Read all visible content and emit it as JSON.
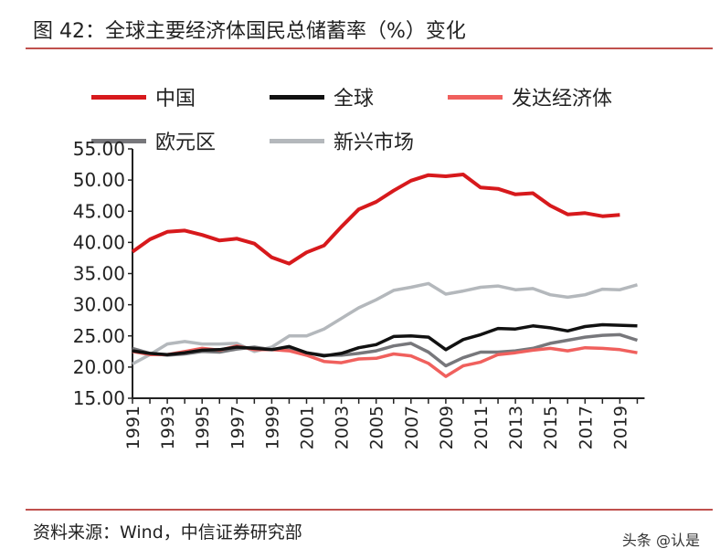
{
  "title": "图 42：全球主要经济体国民总储蓄率（%）变化",
  "source": "资料来源：Wind，中信证券研究部",
  "watermark": "头条 @认是",
  "chart_data": {
    "type": "line",
    "title": "",
    "xlabel": "",
    "ylabel": "",
    "ylim": [
      15,
      55
    ],
    "yticks": [
      "55.00",
      "50.00",
      "45.00",
      "40.00",
      "35.00",
      "30.00",
      "25.00",
      "20.00",
      "15.00"
    ],
    "xticks": [
      "1991",
      "1993",
      "1995",
      "1997",
      "1999",
      "2001",
      "2003",
      "2005",
      "2007",
      "2009",
      "2011",
      "2013",
      "2015",
      "2017",
      "2019"
    ],
    "x": [
      1991,
      1992,
      1993,
      1994,
      1995,
      1996,
      1997,
      1998,
      1999,
      2000,
      2001,
      2002,
      2003,
      2004,
      2005,
      2006,
      2007,
      2008,
      2009,
      2010,
      2011,
      2012,
      2013,
      2014,
      2015,
      2016,
      2017,
      2018,
      2019,
      2020
    ],
    "legend_position": "top",
    "grid": false,
    "series": [
      {
        "name": "中国",
        "color": "#d7191c",
        "values": [
          38.5,
          40.5,
          41.7,
          41.9,
          41.2,
          40.3,
          40.6,
          39.8,
          37.6,
          36.6,
          38.4,
          39.5,
          42.5,
          45.3,
          46.5,
          48.3,
          49.9,
          50.8,
          50.6,
          50.9,
          48.8,
          48.6,
          47.7,
          47.9,
          45.9,
          44.5,
          44.7,
          44.2,
          44.4,
          null
        ]
      },
      {
        "name": "全球",
        "color": "#111111",
        "values": [
          22.6,
          22.2,
          22.0,
          22.3,
          22.7,
          22.8,
          23.2,
          23.0,
          22.8,
          23.3,
          22.3,
          21.8,
          22.2,
          23.1,
          23.6,
          24.9,
          25.0,
          24.8,
          22.8,
          24.4,
          25.2,
          26.2,
          26.1,
          26.6,
          26.3,
          25.8,
          26.5,
          26.8,
          26.7,
          26.6
        ]
      },
      {
        "name": "发达经济体",
        "color": "#f0605d",
        "values": [
          22.5,
          22.0,
          22.0,
          22.5,
          23.0,
          22.7,
          23.4,
          22.8,
          22.8,
          22.6,
          21.9,
          20.9,
          20.7,
          21.3,
          21.4,
          22.1,
          21.8,
          20.6,
          18.5,
          20.2,
          20.8,
          22.0,
          22.3,
          22.7,
          23.0,
          22.6,
          23.1,
          23.0,
          22.8,
          22.3
        ]
      },
      {
        "name": "欧元区",
        "color": "#77777b",
        "values": [
          23.0,
          22.2,
          21.9,
          22.1,
          22.5,
          22.4,
          22.9,
          23.2,
          22.8,
          22.9,
          22.3,
          21.9,
          21.9,
          22.2,
          22.6,
          23.4,
          23.8,
          22.4,
          20.2,
          21.5,
          22.4,
          22.4,
          22.6,
          23.0,
          23.8,
          24.3,
          24.8,
          25.1,
          25.2,
          24.3
        ]
      },
      {
        "name": "新兴市场",
        "color": "#b4b8bc",
        "values": [
          20.5,
          22.0,
          23.7,
          24.1,
          23.7,
          23.7,
          23.8,
          22.5,
          23.2,
          25.0,
          25.0,
          26.1,
          27.8,
          29.5,
          30.8,
          32.3,
          32.8,
          33.4,
          31.7,
          32.2,
          32.8,
          33.0,
          32.4,
          32.6,
          31.6,
          31.2,
          31.6,
          32.5,
          32.4,
          33.2
        ]
      }
    ]
  }
}
